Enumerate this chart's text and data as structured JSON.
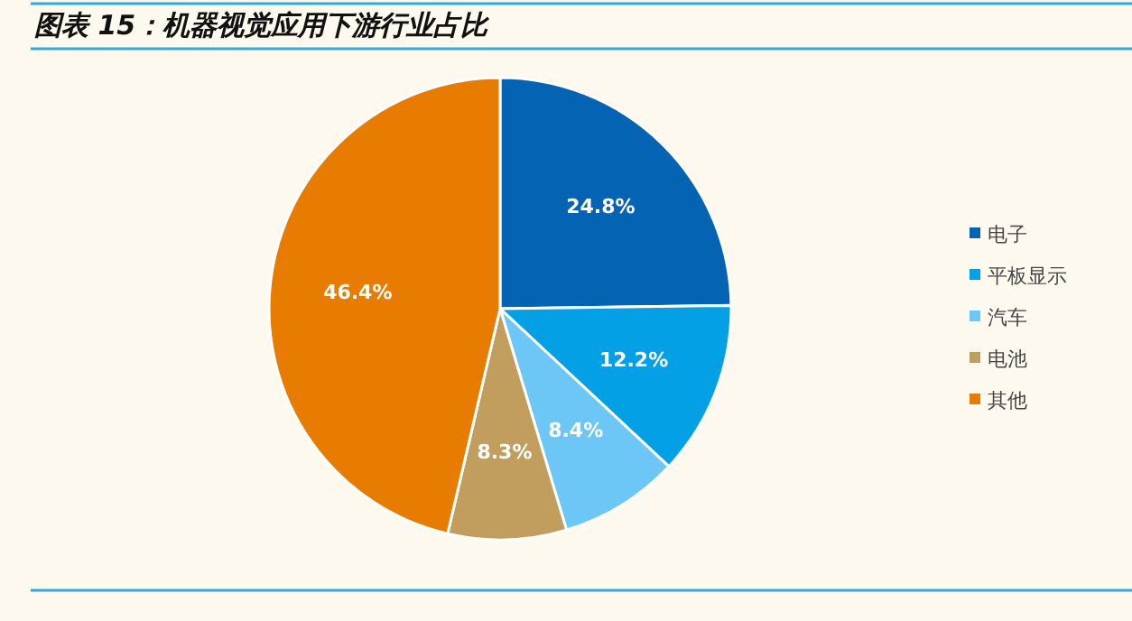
{
  "chart_data": {
    "type": "pie",
    "title": "图表 15：机器视觉应用下游行业占比",
    "categories": [
      "电子",
      "平板显示",
      "汽车",
      "电池",
      "其他"
    ],
    "values": [
      24.8,
      12.2,
      8.4,
      8.3,
      46.4
    ],
    "colors": [
      "#0563b4",
      "#04a0e6",
      "#6cc7f6",
      "#c19e5e",
      "#e87c00"
    ],
    "value_labels": [
      "24.8%",
      "12.2%",
      "8.4%",
      "8.3%",
      "46.4%"
    ],
    "legend": "right"
  }
}
